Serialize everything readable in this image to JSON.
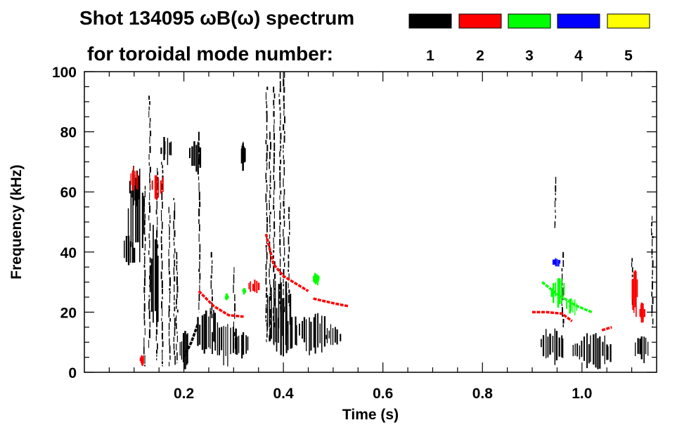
{
  "chart_data": {
    "type": "spectrogram",
    "title_line1": "Shot 134095 ωB(ω) spectrum",
    "title_line2": "for toroidal mode number:",
    "legend": [
      {
        "label": "1",
        "color": "#000000"
      },
      {
        "label": "2",
        "color": "#ff0000"
      },
      {
        "label": "3",
        "color": "#00ff00"
      },
      {
        "label": "4",
        "color": "#0000ff"
      },
      {
        "label": "5",
        "color": "#ffff00"
      }
    ],
    "xlabel": "Time (s)",
    "ylabel": "Frequency (kHz)",
    "xlim": [
      0.0,
      1.15
    ],
    "ylim": [
      0,
      100
    ],
    "xticks": [
      {
        "value": 0.2,
        "label": "0.2"
      },
      {
        "value": 0.4,
        "label": "0.4"
      },
      {
        "value": 0.6,
        "label": "0.6"
      },
      {
        "value": 0.8,
        "label": "0.8"
      },
      {
        "value": 1.0,
        "label": "1.0"
      }
    ],
    "yticks": [
      {
        "value": 0,
        "label": "0"
      },
      {
        "value": 20,
        "label": "20"
      },
      {
        "value": 40,
        "label": "40"
      },
      {
        "value": 60,
        "label": "60"
      },
      {
        "value": 80,
        "label": "80"
      },
      {
        "value": 100,
        "label": "100"
      }
    ],
    "series": [
      {
        "name": "n=1",
        "color": "#000000",
        "blobs": [
          {
            "t": 0.09,
            "f": 40,
            "dt": 0.012,
            "df": 6
          },
          {
            "t": 0.105,
            "f": 52,
            "dt": 0.018,
            "df": 14
          },
          {
            "t": 0.1,
            "f": 62,
            "dt": 0.01,
            "df": 6
          },
          {
            "t": 0.14,
            "f": 30,
            "dt": 0.01,
            "df": 14
          },
          {
            "t": 0.165,
            "f": 74,
            "dt": 0.012,
            "df": 4
          },
          {
            "t": 0.2,
            "f": 7,
            "dt": 0.01,
            "df": 6
          },
          {
            "t": 0.222,
            "f": 72,
            "dt": 0.012,
            "df": 5
          },
          {
            "t": 0.245,
            "f": 14,
            "dt": 0.02,
            "df": 8
          },
          {
            "t": 0.28,
            "f": 10,
            "dt": 0.025,
            "df": 7
          },
          {
            "t": 0.315,
            "f": 9,
            "dt": 0.015,
            "df": 4
          },
          {
            "t": 0.318,
            "f": 72,
            "dt": 0.004,
            "df": 4
          },
          {
            "t": 0.39,
            "f": 20,
            "dt": 0.025,
            "df": 12
          },
          {
            "t": 0.4,
            "f": 13,
            "dt": 0.03,
            "df": 7
          },
          {
            "t": 0.46,
            "f": 13,
            "dt": 0.03,
            "df": 6
          },
          {
            "t": 0.5,
            "f": 12,
            "dt": 0.015,
            "df": 3
          },
          {
            "t": 0.94,
            "f": 9,
            "dt": 0.025,
            "df": 5
          },
          {
            "t": 1.02,
            "f": 7,
            "dt": 0.04,
            "df": 5
          },
          {
            "t": 1.12,
            "f": 8,
            "dt": 0.015,
            "df": 5
          }
        ],
        "streaks": [
          {
            "t": 0.12,
            "f0": 2,
            "f1": 62
          },
          {
            "t": 0.13,
            "f0": 8,
            "f1": 92
          },
          {
            "t": 0.145,
            "f0": 4,
            "f1": 68
          },
          {
            "t": 0.155,
            "f0": 2,
            "f1": 70
          },
          {
            "t": 0.17,
            "f0": 2,
            "f1": 55
          },
          {
            "t": 0.18,
            "f0": 2,
            "f1": 58
          },
          {
            "t": 0.185,
            "f0": 3,
            "f1": 40
          },
          {
            "t": 0.23,
            "f0": 20,
            "f1": 80
          },
          {
            "t": 0.255,
            "f0": 18,
            "f1": 40
          },
          {
            "t": 0.3,
            "f0": 12,
            "f1": 35
          },
          {
            "t": 0.365,
            "f0": 10,
            "f1": 95
          },
          {
            "t": 0.372,
            "f0": 10,
            "f1": 80
          },
          {
            "t": 0.38,
            "f0": 15,
            "f1": 95
          },
          {
            "t": 0.392,
            "f0": 20,
            "f1": 100
          },
          {
            "t": 0.4,
            "f0": 20,
            "f1": 100
          },
          {
            "t": 0.41,
            "f0": 22,
            "f1": 55
          },
          {
            "t": 0.945,
            "f0": 48,
            "f1": 65
          },
          {
            "t": 0.96,
            "f0": 15,
            "f1": 40
          },
          {
            "t": 1.1,
            "f0": 22,
            "f1": 38
          },
          {
            "t": 1.14,
            "f0": 15,
            "f1": 52
          }
        ],
        "curves": [
          [
            [
              0.2,
              5
            ],
            [
              0.215,
              10
            ],
            [
              0.228,
              16
            ]
          ]
        ]
      },
      {
        "name": "n=2",
        "color": "#ff0000",
        "blobs": [
          {
            "t": 0.1,
            "f": 64,
            "dt": 0.008,
            "df": 4
          },
          {
            "t": 0.115,
            "f": 4,
            "dt": 0.004,
            "df": 2
          },
          {
            "t": 0.147,
            "f": 62,
            "dt": 0.012,
            "df": 4
          },
          {
            "t": 0.34,
            "f": 28.5,
            "dt": 0.012,
            "df": 2
          },
          {
            "t": 1.105,
            "f": 27,
            "dt": 0.006,
            "df": 7
          },
          {
            "t": 1.12,
            "f": 20,
            "dt": 0.005,
            "df": 3
          }
        ],
        "streaks": [],
        "curves": [
          [
            [
              0.23,
              27
            ],
            [
              0.26,
              22
            ],
            [
              0.29,
              19
            ],
            [
              0.32,
              18.5
            ]
          ],
          [
            [
              0.365,
              46
            ],
            [
              0.38,
              36
            ],
            [
              0.4,
              32
            ],
            [
              0.43,
              29
            ],
            [
              0.45,
              27
            ]
          ],
          [
            [
              0.46,
              24.5
            ],
            [
              0.5,
              23
            ],
            [
              0.53,
              22
            ]
          ],
          [
            [
              0.9,
              20
            ],
            [
              0.93,
              20
            ],
            [
              0.96,
              19.5
            ],
            [
              0.98,
              17
            ]
          ],
          [
            [
              1.04,
              14
            ],
            [
              1.06,
              15
            ]
          ]
        ]
      },
      {
        "name": "n=3",
        "color": "#00ff00",
        "blobs": [
          {
            "t": 0.95,
            "f": 27,
            "dt": 0.015,
            "df": 4
          },
          {
            "t": 0.98,
            "f": 22,
            "dt": 0.012,
            "df": 3
          },
          {
            "t": 0.465,
            "f": 31,
            "dt": 0.006,
            "df": 2
          },
          {
            "t": 0.285,
            "f": 25,
            "dt": 0.003,
            "df": 1
          },
          {
            "t": 0.32,
            "f": 27,
            "dt": 0.003,
            "df": 1
          }
        ],
        "streaks": [],
        "curves": [
          [
            [
              0.92,
              30
            ],
            [
              0.95,
              26
            ],
            [
              0.99,
              22
            ],
            [
              1.02,
              20
            ]
          ]
        ]
      },
      {
        "name": "n=4",
        "color": "#0000ff",
        "blobs": [
          {
            "t": 0.948,
            "f": 36.5,
            "dt": 0.008,
            "df": 1.5
          }
        ],
        "streaks": [],
        "curves": []
      },
      {
        "name": "n=5",
        "color": "#ffff00",
        "blobs": [],
        "streaks": [],
        "curves": []
      }
    ]
  }
}
